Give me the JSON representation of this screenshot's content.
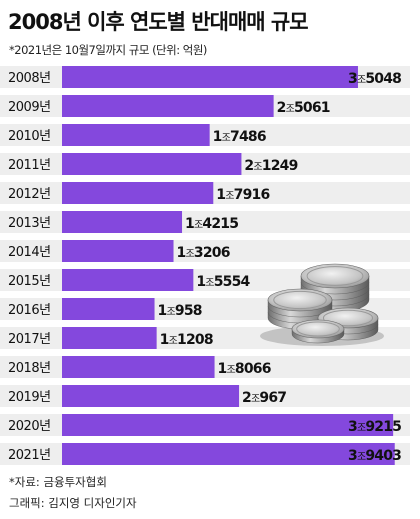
{
  "title": "2008년 이후 연도별 반대매매 규모",
  "subtitle": "*2021년은 10월7일까지 규모 (단위: 억원)",
  "source": "*자료: 금융투자협회",
  "credit": "그래픽: 김지영 디자인기자",
  "colors": {
    "bar": "#8448dd",
    "row_background": "#eeeeee"
  },
  "chart_data": {
    "type": "bar",
    "orientation": "horizontal",
    "categories": [
      "2008년",
      "2009년",
      "2010년",
      "2011년",
      "2012년",
      "2013년",
      "2014년",
      "2015년",
      "2016년",
      "2017년",
      "2018년",
      "2019년",
      "2020년",
      "2021년"
    ],
    "values": [
      35048,
      25061,
      17486,
      21249,
      17916,
      14215,
      13206,
      15554,
      10958,
      11208,
      18066,
      20967,
      39215,
      39403
    ],
    "value_labels": [
      {
        "major": "3",
        "unit": "조",
        "minor": "5048"
      },
      {
        "major": "2",
        "unit": "조",
        "minor": "5061"
      },
      {
        "major": "1",
        "unit": "조",
        "minor": "7486"
      },
      {
        "major": "2",
        "unit": "조",
        "minor": "1249"
      },
      {
        "major": "1",
        "unit": "조",
        "minor": "7916"
      },
      {
        "major": "1",
        "unit": "조",
        "minor": "4215"
      },
      {
        "major": "1",
        "unit": "조",
        "minor": "3206"
      },
      {
        "major": "1",
        "unit": "조",
        "minor": "5554"
      },
      {
        "major": "1",
        "unit": "조",
        "minor": "958"
      },
      {
        "major": "1",
        "unit": "조",
        "minor": "1208"
      },
      {
        "major": "1",
        "unit": "조",
        "minor": "8066"
      },
      {
        "major": "2",
        "unit": "조",
        "minor": "967"
      },
      {
        "major": "3",
        "unit": "조",
        "minor": "9215"
      },
      {
        "major": "3",
        "unit": "조",
        "minor": "9403"
      }
    ],
    "xlim": [
      0,
      45000
    ],
    "grid": false,
    "decoration": "coin-stack-icon"
  }
}
